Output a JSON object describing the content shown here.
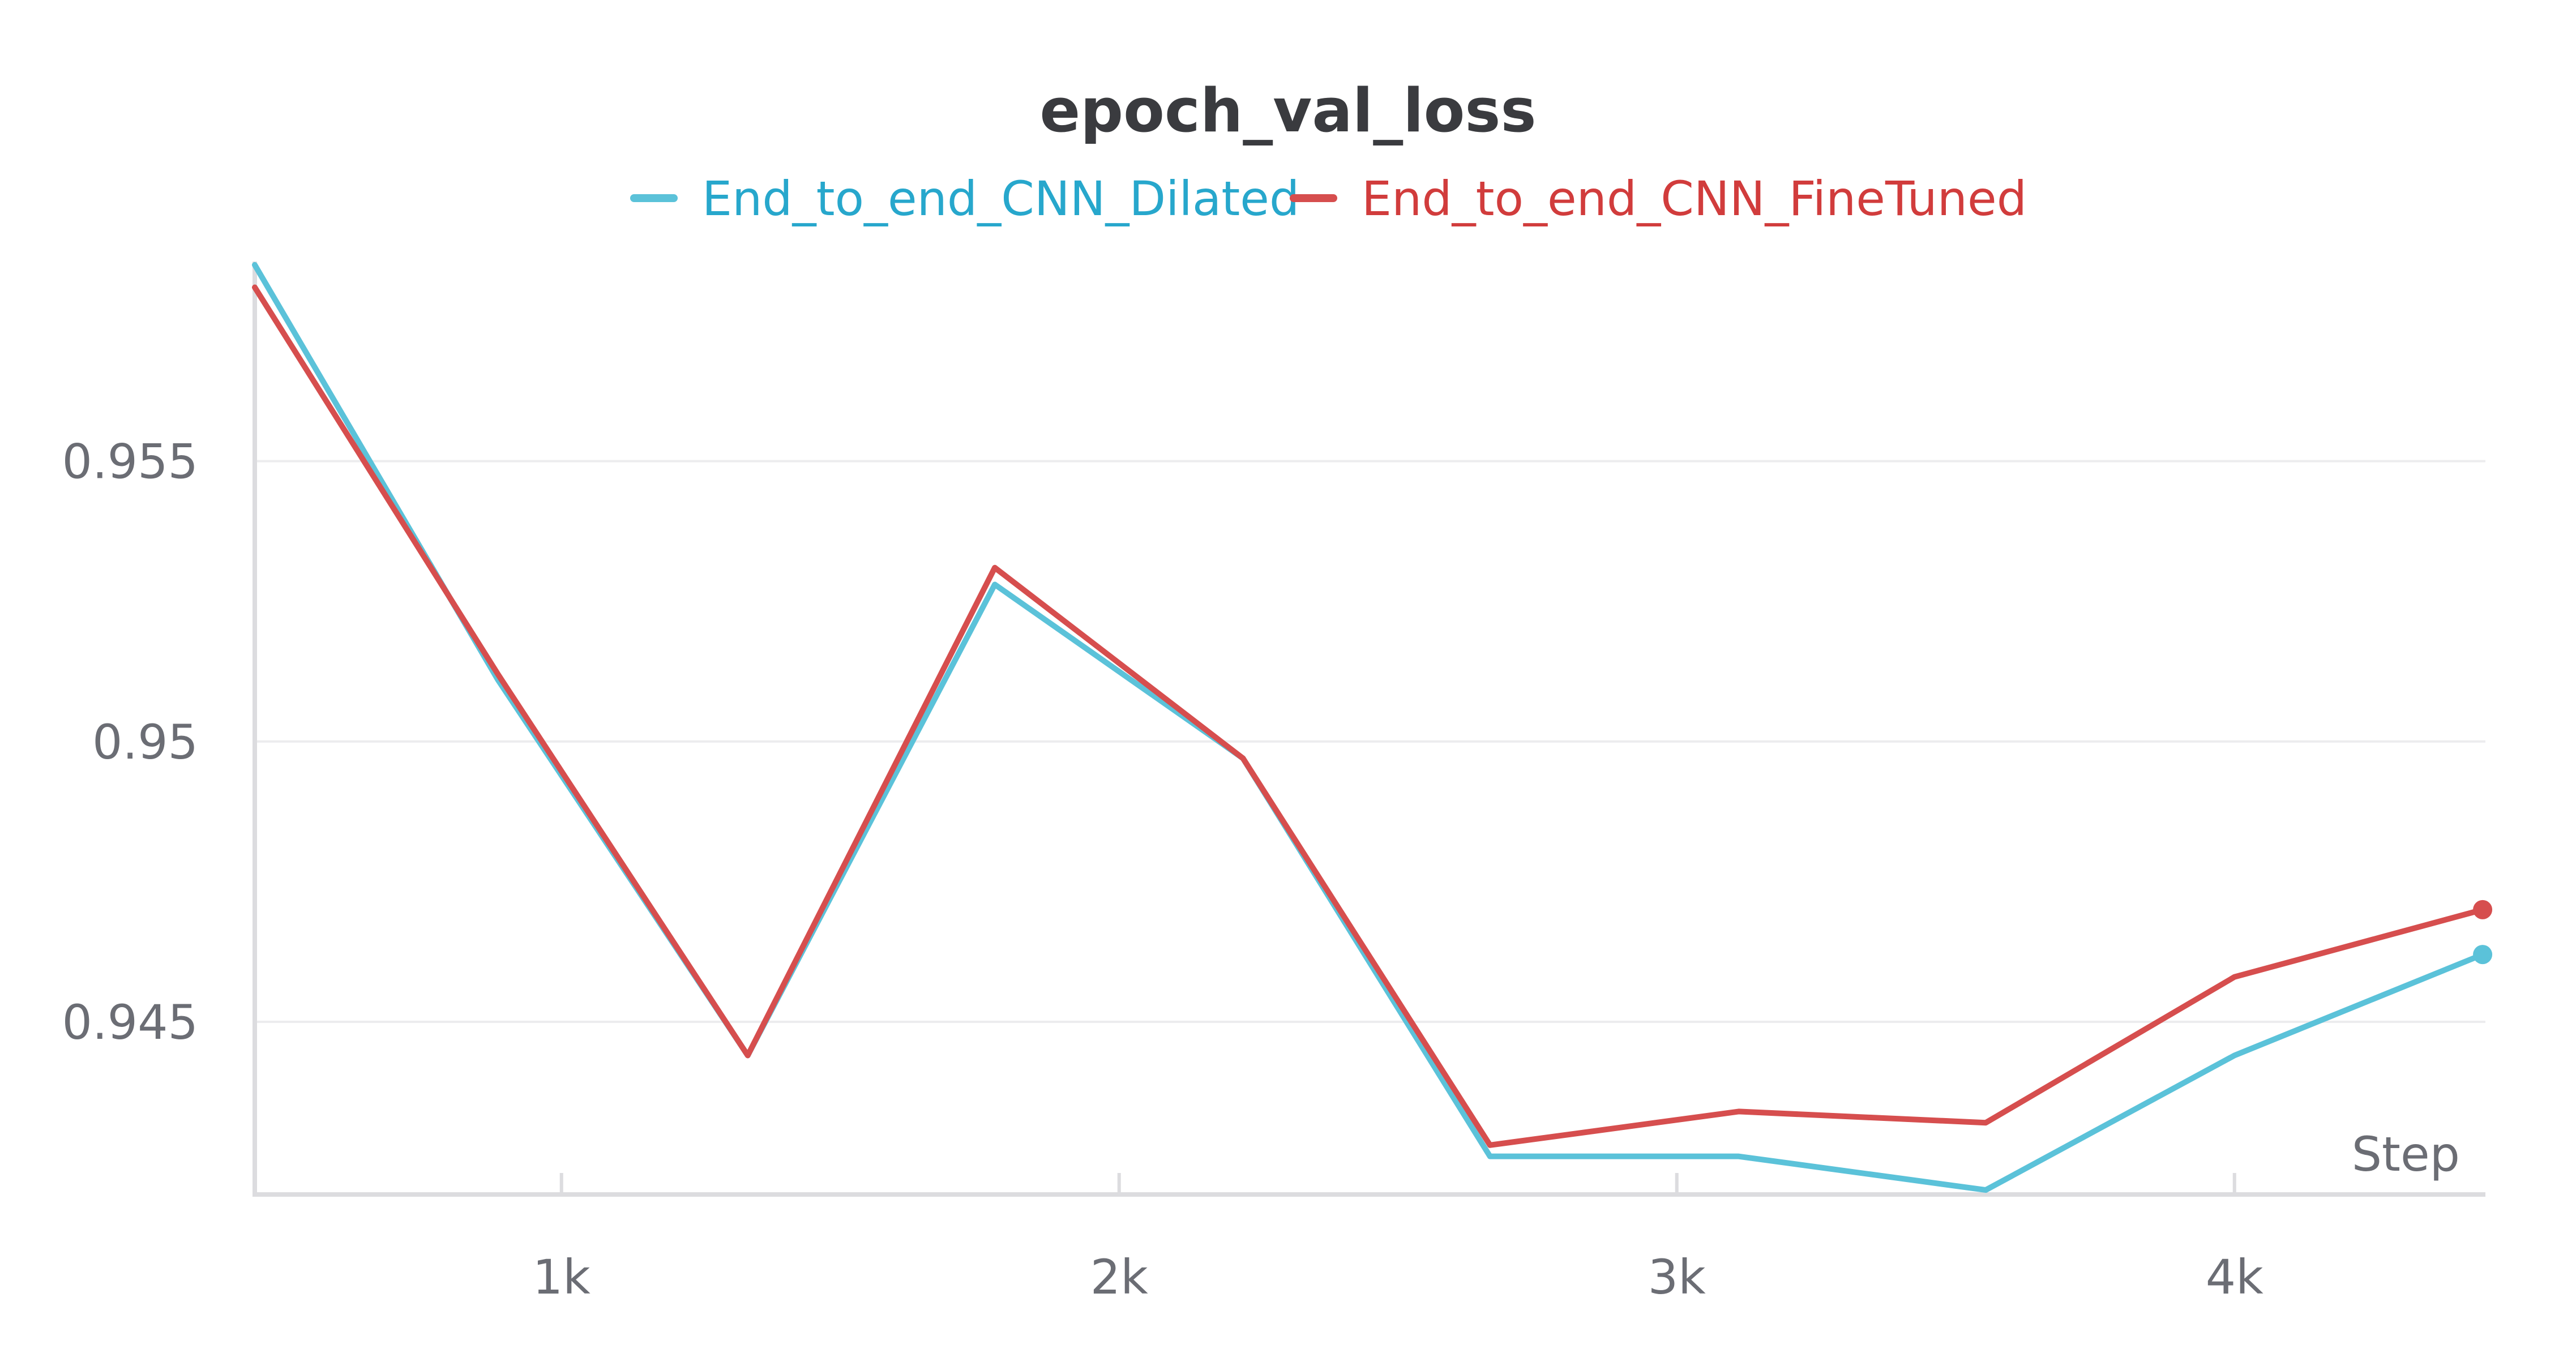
{
  "chart_data": {
    "type": "line",
    "title": "epoch_val_loss",
    "xlabel": "Step",
    "ylabel": "",
    "xlim": [
      450,
      4450
    ],
    "ylim": [
      0.94192,
      0.95856
    ],
    "x_ticks": [
      1000,
      2000,
      3000,
      4000
    ],
    "x_tick_labels": [
      "1k",
      "2k",
      "3k",
      "4k"
    ],
    "y_ticks": [
      0.945,
      0.95,
      0.955
    ],
    "y_tick_labels": [
      "0.945",
      "0.95",
      "0.955"
    ],
    "grid": "horizontal",
    "legend_position": "top-center",
    "series": [
      {
        "name": "End_to_end_CNN_Dilated",
        "color": "#5bc2d9",
        "label_color": "#27a7cc",
        "x": [
          450,
          886,
          1334,
          1777,
          2222,
          2665,
          3111,
          3554,
          4000,
          4445
        ],
        "y": [
          0.9585,
          0.9511,
          0.9444,
          0.9528,
          0.9497,
          0.9426,
          0.9426,
          0.942,
          0.9444,
          0.9462
        ]
      },
      {
        "name": "End_to_end_CNN_FineTuned",
        "color": "#d64e4e",
        "label_color": "#d13c3c",
        "x": [
          450,
          886,
          1334,
          1777,
          2222,
          2665,
          3111,
          3554,
          4000,
          4445
        ],
        "y": [
          0.9581,
          0.9512,
          0.9444,
          0.9531,
          0.9497,
          0.9428,
          0.9434,
          0.9432,
          0.9458,
          0.947
        ]
      }
    ]
  }
}
